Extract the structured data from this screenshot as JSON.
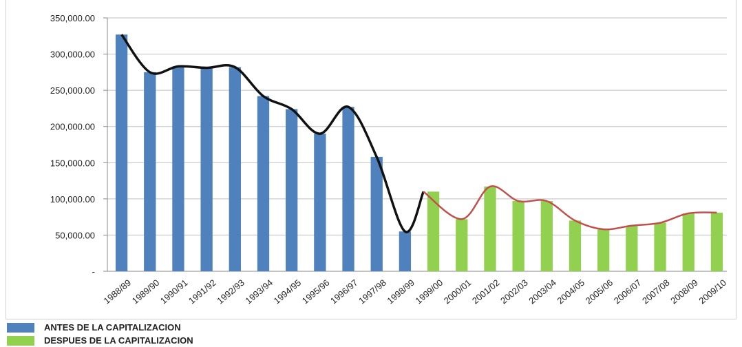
{
  "chart_data": {
    "type": "bar",
    "categories": [
      "1988/89",
      "1989/90",
      "1990/91",
      "1991/92",
      "1992/93",
      "1993/94",
      "1994/95",
      "1995/96",
      "1996/97",
      "1997/98",
      "1998/99",
      "1999/00",
      "2000/01",
      "2001/02",
      "2002/03",
      "2003/04",
      "2004/05",
      "2005/06",
      "2006/07",
      "2007/08",
      "2008/09",
      "2009/10"
    ],
    "series": [
      {
        "name": "ANTES DE LA CAPITALIZACION",
        "color": "#4f81bd",
        "trend_color": "#111111",
        "values": [
          327000,
          275000,
          283000,
          281000,
          282000,
          242000,
          224000,
          190000,
          227000,
          158000,
          55000,
          null,
          null,
          null,
          null,
          null,
          null,
          null,
          null,
          null,
          null,
          null
        ]
      },
      {
        "name": "DESPUES  DE LA CAPITALIZACION",
        "color": "#92d050",
        "trend_color": "#c0504d",
        "values": [
          null,
          null,
          null,
          null,
          null,
          null,
          null,
          null,
          null,
          null,
          null,
          110000,
          72000,
          117000,
          97000,
          97000,
          70000,
          58000,
          63000,
          67000,
          80000,
          81000
        ]
      }
    ],
    "trend_link": [
      55000,
      110000
    ],
    "yticks": [
      "350,000.00",
      "300,000.00",
      "250,000.00",
      "200,000.00",
      "150,000.00",
      "100,000.00",
      "50,000.00",
      "-"
    ],
    "ylim": [
      0,
      350000
    ],
    "grid": true,
    "legend_position": "bottom-left"
  }
}
